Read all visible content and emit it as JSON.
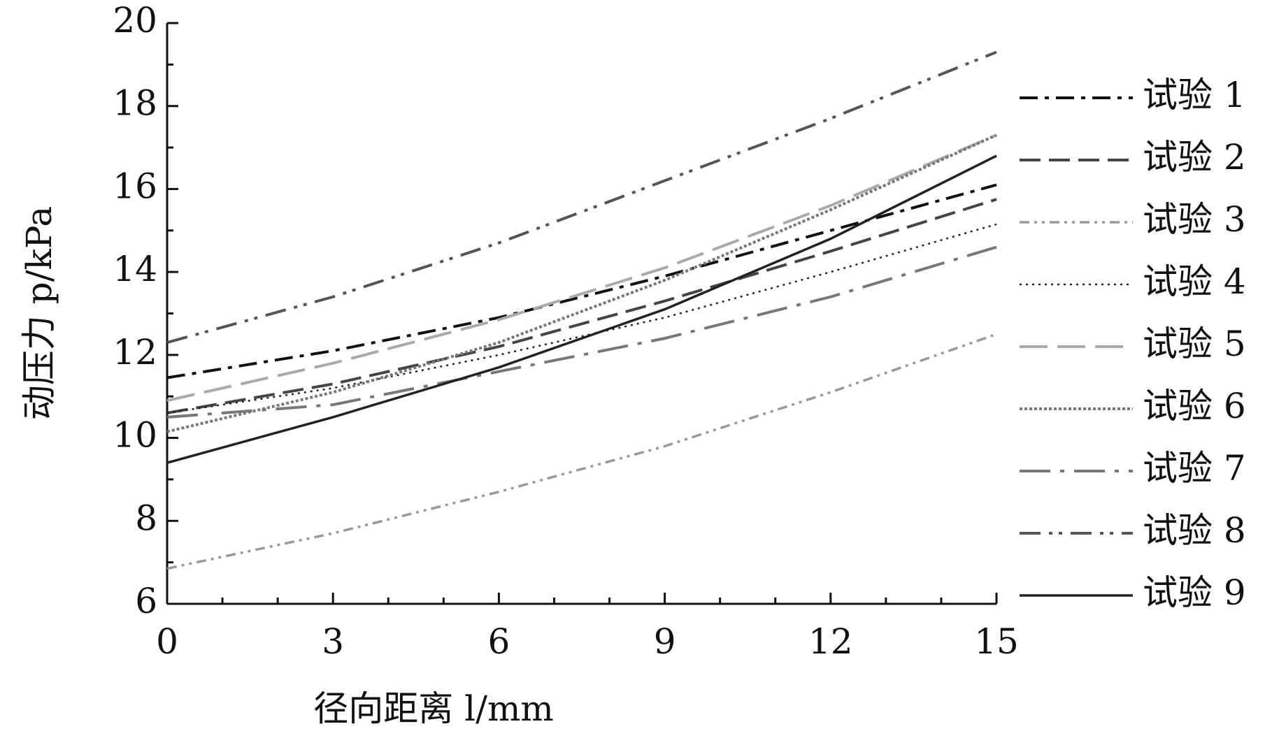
{
  "chart_data": {
    "type": "line",
    "x_label": "径向距离 l/mm",
    "y_label": "动压力 p/kPa",
    "x": [
      0,
      3,
      6,
      9,
      12,
      15
    ],
    "xlim": [
      0,
      15
    ],
    "xticks": [
      0,
      3,
      6,
      9,
      12,
      15
    ],
    "ylim": [
      6,
      20
    ],
    "yticks": [
      6,
      8,
      10,
      12,
      14,
      16,
      18,
      20
    ],
    "legend": "right",
    "series": [
      {
        "name": "试验 1",
        "color": "#111111",
        "values": [
          11.45,
          12.1,
          12.9,
          13.9,
          15.0,
          16.1
        ]
      },
      {
        "name": "试验 2",
        "color": "#444444",
        "values": [
          10.6,
          11.3,
          12.2,
          13.3,
          14.5,
          15.75
        ]
      },
      {
        "name": "试验 3",
        "color": "#999999",
        "values": [
          6.85,
          7.7,
          8.7,
          9.8,
          11.1,
          12.5
        ]
      },
      {
        "name": "试验 4",
        "color": "#222222",
        "values": [
          10.6,
          11.2,
          12.0,
          12.9,
          14.0,
          15.15
        ]
      },
      {
        "name": "试验 5",
        "color": "#aaaaaa",
        "values": [
          10.9,
          11.8,
          12.85,
          14.1,
          15.6,
          17.3
        ]
      },
      {
        "name": "试验 6",
        "color": "#777777",
        "values": [
          10.15,
          11.1,
          12.3,
          13.8,
          15.5,
          17.3
        ]
      },
      {
        "name": "试验 7",
        "color": "#777777",
        "values": [
          10.5,
          10.8,
          11.6,
          12.4,
          13.4,
          14.6
        ]
      },
      {
        "name": "试验 8",
        "color": "#555555",
        "values": [
          12.3,
          13.4,
          14.7,
          16.2,
          17.7,
          19.3
        ]
      },
      {
        "name": "试验 9",
        "color": "#222222",
        "values": [
          9.4,
          10.5,
          11.7,
          13.1,
          14.8,
          16.8
        ]
      }
    ]
  }
}
